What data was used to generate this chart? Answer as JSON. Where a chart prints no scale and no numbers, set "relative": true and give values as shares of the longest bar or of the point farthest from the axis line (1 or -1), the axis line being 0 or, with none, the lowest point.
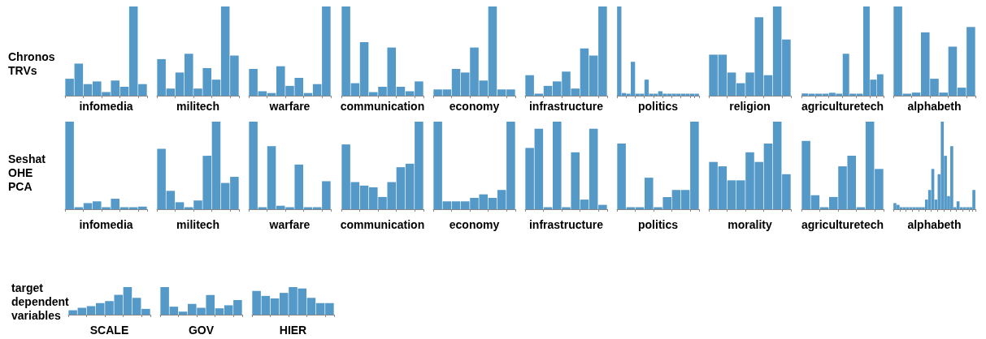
{
  "chart_data": [
    {
      "type": "bar",
      "relative": true,
      "color": "#5499c7",
      "ylabel": "Chronos TRVs",
      "xlabel": "infomedia",
      "categories": [
        null,
        null,
        null,
        null,
        null,
        null,
        null,
        null,
        null
      ],
      "values": [
        0.19,
        0.36,
        0.13,
        0.16,
        0.04,
        0.17,
        0.1,
        1,
        0.13
      ]
    },
    {
      "type": "bar",
      "relative": true,
      "color": "#5499c7",
      "xlabel": "militech",
      "categories": [
        null,
        null,
        null,
        null,
        null,
        null,
        null,
        null,
        null
      ],
      "values": [
        0.41,
        0.08,
        0.26,
        0.47,
        0.08,
        0.31,
        0.18,
        1,
        0.45
      ]
    },
    {
      "type": "bar",
      "relative": true,
      "color": "#5499c7",
      "xlabel": "warfare",
      "categories": [
        null,
        null,
        null,
        null,
        null,
        null,
        null,
        null,
        null
      ],
      "values": [
        0.3,
        0.05,
        0.03,
        0.33,
        0.11,
        0.2,
        0.03,
        0.13,
        1
      ]
    },
    {
      "type": "bar",
      "relative": true,
      "color": "#5499c7",
      "xlabel": "communication",
      "categories": [
        null,
        null,
        null,
        null,
        null,
        null,
        null,
        null,
        null
      ],
      "values": [
        1,
        0.14,
        0.6,
        0.04,
        0.1,
        0.54,
        0.1,
        0.05,
        0.16
      ]
    },
    {
      "type": "bar",
      "relative": true,
      "color": "#5499c7",
      "xlabel": "economy",
      "categories": [
        null,
        null,
        null,
        null,
        null,
        null,
        null,
        null,
        null
      ],
      "values": [
        0.07,
        0.07,
        0.3,
        0.26,
        0.54,
        0.17,
        1,
        0.07,
        0.07
      ]
    },
    {
      "type": "bar",
      "relative": true,
      "color": "#5499c7",
      "xlabel": "infrastructure",
      "categories": [
        null,
        null,
        null,
        null,
        null,
        null,
        null,
        null,
        null
      ],
      "values": [
        0.23,
        0.02,
        0.11,
        0.16,
        0.27,
        0.08,
        0.53,
        0.45,
        1
      ]
    },
    {
      "type": "bar",
      "relative": true,
      "color": "#5499c7",
      "xlabel": "politics",
      "categories": [
        null,
        null,
        null,
        null,
        null,
        null,
        null,
        null,
        null,
        null,
        null,
        null,
        null,
        null,
        null,
        null,
        null,
        null
      ],
      "values": [
        1,
        0.03,
        0.02,
        0.38,
        0,
        0.02,
        0.18,
        0,
        0,
        0.05,
        0,
        0,
        0.02,
        0.02,
        0,
        0.02,
        0,
        0.02
      ]
    },
    {
      "type": "bar",
      "relative": true,
      "color": "#5499c7",
      "xlabel": "religion",
      "categories": [
        null,
        null,
        null,
        null,
        null,
        null,
        null,
        null,
        null
      ],
      "values": [
        0.46,
        0.46,
        0.26,
        0.14,
        0.26,
        0.88,
        0.23,
        1,
        0.63
      ]
    },
    {
      "type": "bar",
      "relative": true,
      "color": "#5499c7",
      "xlabel": "agriculturetech",
      "categories": [
        null,
        null,
        null,
        null,
        null,
        null,
        null,
        null,
        null,
        null,
        null,
        null
      ],
      "values": [
        0.025,
        0,
        0,
        0.02,
        0.033,
        0.02,
        0.47,
        0.02,
        0.02,
        1,
        0.18,
        0.24
      ]
    },
    {
      "type": "bar",
      "relative": true,
      "color": "#5499c7",
      "xlabel": "alphabeth",
      "categories": [
        null,
        null,
        null,
        null,
        null,
        null,
        null,
        null,
        null
      ],
      "values": [
        1,
        0.02,
        0.035,
        0.71,
        0.19,
        0.035,
        0.55,
        0.09,
        0.77
      ]
    },
    {
      "type": "bar",
      "relative": true,
      "color": "#5499c7",
      "ylabel": "Seshat OHE PCA",
      "xlabel": "infomedia",
      "categories": [
        null,
        null,
        null,
        null,
        null,
        null,
        null,
        null,
        null
      ],
      "values": [
        1,
        0,
        0.07,
        0.09,
        0,
        0.12,
        0.02,
        0,
        0.03
      ]
    },
    {
      "type": "bar",
      "relative": true,
      "color": "#5499c7",
      "xlabel": "militech",
      "categories": [
        null,
        null,
        null,
        null,
        null,
        null,
        null,
        null,
        null
      ],
      "values": [
        0.69,
        0.21,
        0.08,
        0.02,
        0.1,
        0.61,
        1,
        0.3,
        0.37
      ]
    },
    {
      "type": "bar",
      "relative": true,
      "color": "#5499c7",
      "xlabel": "warfare",
      "categories": [
        null,
        null,
        null,
        null,
        null,
        null,
        null,
        null,
        null
      ],
      "values": [
        1,
        0,
        0.72,
        0.04,
        0,
        0.51,
        0,
        0,
        0.32
      ]
    },
    {
      "type": "bar",
      "relative": true,
      "color": "#5499c7",
      "xlabel": "communication",
      "categories": [
        null,
        null,
        null,
        null,
        null,
        null,
        null,
        null,
        null
      ],
      "values": [
        0.74,
        0.31,
        0.27,
        0.25,
        0.14,
        0.31,
        0.48,
        0.52,
        1
      ]
    },
    {
      "type": "bar",
      "relative": true,
      "color": "#5499c7",
      "xlabel": "economy",
      "categories": [
        null,
        null,
        null,
        null,
        null,
        null,
        null,
        null,
        null
      ],
      "values": [
        1,
        0.09,
        0.09,
        0.09,
        0.13,
        0.17,
        0.13,
        0.22,
        1
      ]
    },
    {
      "type": "bar",
      "relative": true,
      "color": "#5499c7",
      "xlabel": "infrastructure",
      "categories": [
        null,
        null,
        null,
        null,
        null,
        null,
        null,
        null,
        null
      ],
      "values": [
        0.7,
        0.92,
        0,
        1,
        0,
        0.65,
        0.11,
        0.92,
        0.05
      ]
    },
    {
      "type": "bar",
      "relative": true,
      "color": "#5499c7",
      "xlabel": "politics",
      "categories": [
        null,
        null,
        null,
        null,
        null,
        null,
        null,
        null,
        null
      ],
      "values": [
        0.75,
        0.02,
        0.02,
        0.36,
        0,
        0.14,
        0.22,
        0.22,
        1
      ]
    },
    {
      "type": "bar",
      "relative": true,
      "color": "#5499c7",
      "xlabel": "morality",
      "categories": [
        null,
        null,
        null,
        null,
        null,
        null,
        null,
        null,
        null
      ],
      "values": [
        0.54,
        0.49,
        0.33,
        0.33,
        0.65,
        0.54,
        0.75,
        1,
        0.4
      ]
    },
    {
      "type": "bar",
      "relative": true,
      "color": "#5499c7",
      "xlabel": "agriculturetech",
      "categories": [
        null,
        null,
        null,
        null,
        null,
        null,
        null,
        null,
        null
      ],
      "values": [
        0.78,
        0.16,
        0,
        0.14,
        0.49,
        0.61,
        0,
        1,
        0.46
      ]
    },
    {
      "type": "bar",
      "relative": true,
      "color": "#5499c7",
      "xlabel": "alphabeth",
      "categories": [
        null,
        null,
        null,
        null,
        null,
        null,
        null,
        null,
        null,
        null,
        null,
        null,
        null,
        null,
        null,
        null,
        null,
        null,
        null,
        null,
        null,
        null,
        null,
        null,
        null,
        null
      ],
      "values": [
        0.07,
        0.05,
        0,
        0,
        0,
        0,
        0,
        0,
        0.02,
        0,
        0.11,
        0.22,
        0.46,
        0.11,
        0.4,
        1,
        0.61,
        0.15,
        0.72,
        0,
        0.09,
        0,
        0,
        0,
        0,
        0.22
      ]
    },
    {
      "type": "bar",
      "relative": true,
      "color": "#5499c7",
      "ylabel": "target dependent variables",
      "xlabel": "SCALE",
      "categories": [
        null,
        null,
        null,
        null,
        null,
        null,
        null,
        null,
        null
      ],
      "values": [
        0.16,
        0.25,
        0.31,
        0.42,
        0.49,
        0.72,
        1,
        0.61,
        0.21
      ]
    },
    {
      "type": "bar",
      "relative": true,
      "color": "#5499c7",
      "xlabel": "GOV",
      "categories": [
        null,
        null,
        null,
        null,
        null,
        null,
        null,
        null,
        null
      ],
      "values": [
        1,
        0.29,
        0.11,
        0.39,
        0.25,
        0.71,
        0.23,
        0.34,
        0.53
      ]
    },
    {
      "type": "bar",
      "relative": true,
      "color": "#5499c7",
      "xlabel": "HIER",
      "categories": [
        null,
        null,
        null,
        null,
        null,
        null,
        null,
        null,
        null
      ],
      "values": [
        0.86,
        0.68,
        0.59,
        0.79,
        1,
        0.95,
        0.61,
        0.42,
        0.42
      ]
    }
  ]
}
